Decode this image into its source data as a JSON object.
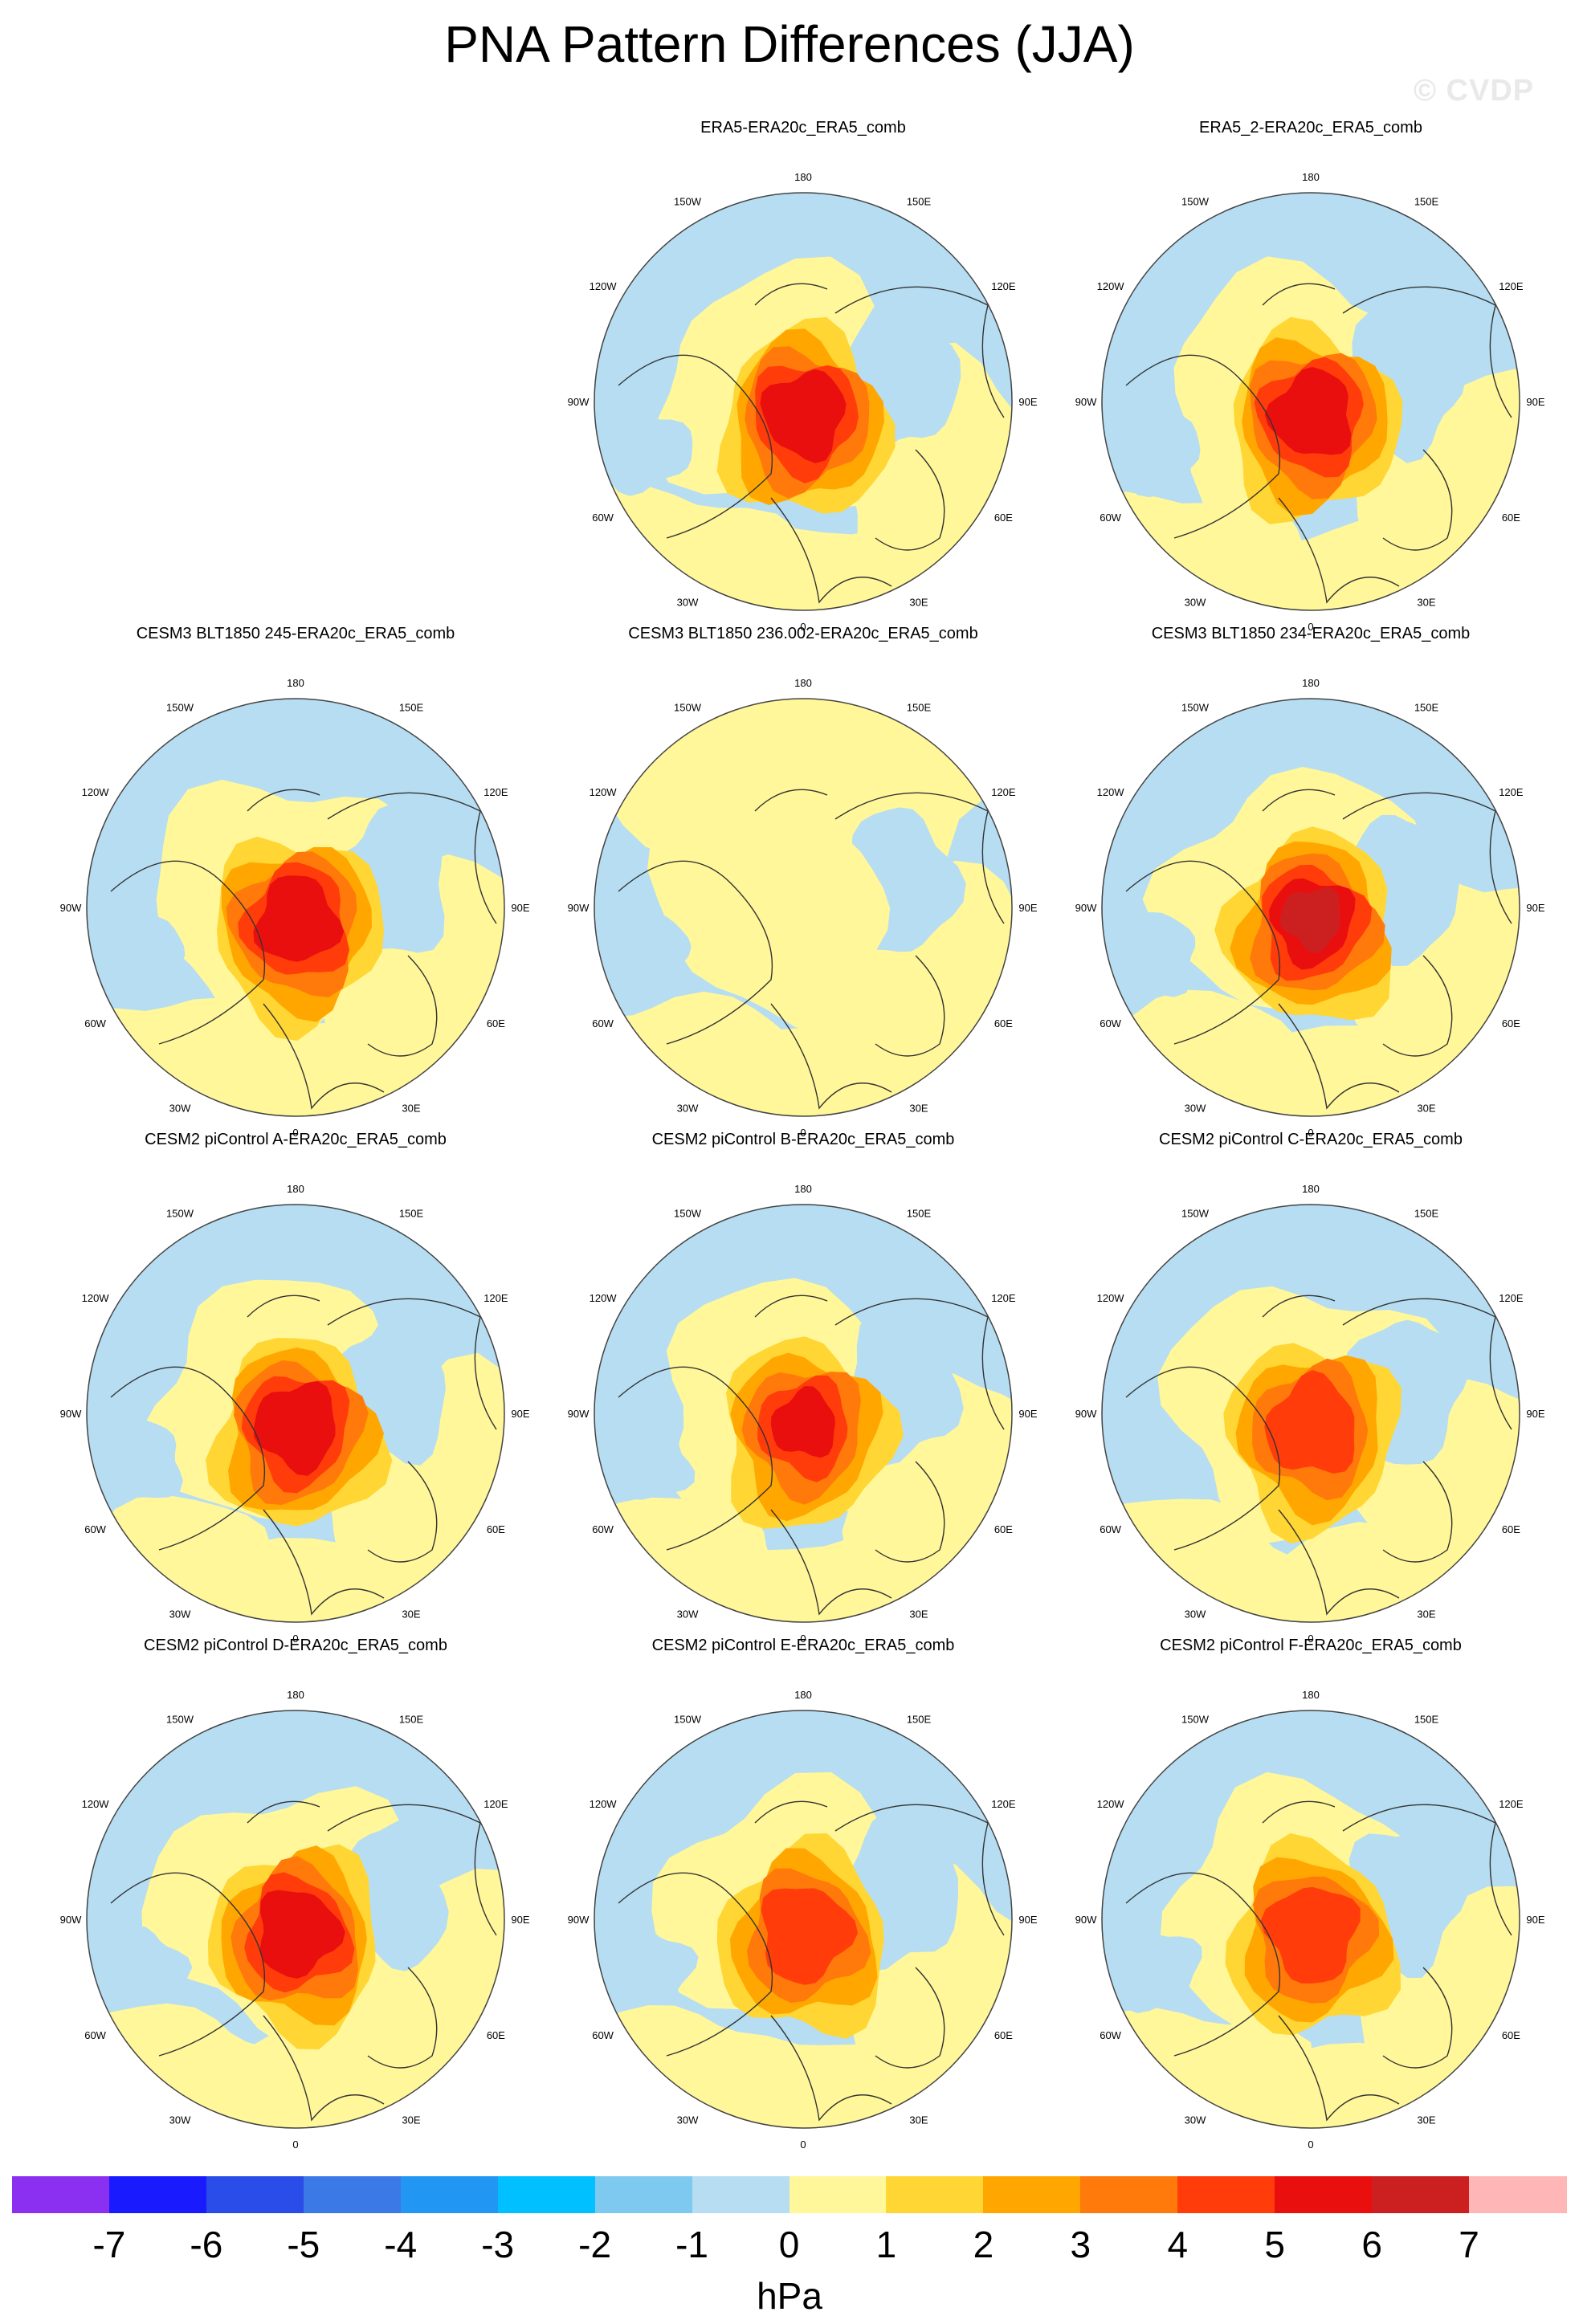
{
  "title": "PNA Pattern Differences (JJA)",
  "watermark": "© CVDP",
  "colors": {
    "levels": [
      "#8b2ff0",
      "#1a1aff",
      "#2a4ce8",
      "#3b7ae6",
      "#2196f3",
      "#00c0ff",
      "#7ec9f0",
      "#b6ddf2",
      "#fff79a",
      "#ffd633",
      "#ffa700",
      "#ff7a0a",
      "#ff3c0a",
      "#ea0f0f",
      "#cc2020",
      "#ffb6b6"
    ],
    "coast": "#333333",
    "border": "#444444"
  },
  "chart_data": {
    "type": "polar-contour-panels",
    "variable": "PNA pattern difference",
    "season": "JJA",
    "units": "hPa",
    "colorbar_ticks": [
      "-7",
      "-6",
      "-5",
      "-4",
      "-3",
      "-2",
      "-1",
      "0",
      "1",
      "2",
      "3",
      "4",
      "5",
      "6",
      "7"
    ],
    "longitude_labels": [
      "180",
      "150E",
      "120E",
      "90E",
      "60E",
      "30E",
      "0",
      "30W",
      "60W",
      "90W",
      "120W",
      "150W"
    ],
    "panels": [
      {
        "id": "era5",
        "title": "ERA5-ERA20c_ERA5_comb",
        "center_max": 5.5,
        "row": 0,
        "col": 1
      },
      {
        "id": "era5_2",
        "title": "ERA5_2-ERA20c_ERA5_comb",
        "center_max": 5.5,
        "row": 0,
        "col": 2
      },
      {
        "id": "cesm3_245",
        "title": "CESM3 BLT1850 245-ERA20c_ERA5_comb",
        "center_max": 5.5,
        "row": 1,
        "col": 0
      },
      {
        "id": "cesm3_236",
        "title": "CESM3 BLT1850 236.002-ERA20c_ERA5_comb",
        "center_max": 0.5,
        "row": 1,
        "col": 1
      },
      {
        "id": "cesm3_234",
        "title": "CESM3 BLT1850 234-ERA20c_ERA5_comb",
        "center_max": 6.0,
        "row": 1,
        "col": 2
      },
      {
        "id": "cesm2_a",
        "title": "CESM2 piControl A-ERA20c_ERA5_comb",
        "center_max": 5.5,
        "row": 2,
        "col": 0
      },
      {
        "id": "cesm2_b",
        "title": "CESM2 piControl B-ERA20c_ERA5_comb",
        "center_max": 5.0,
        "row": 2,
        "col": 1
      },
      {
        "id": "cesm2_c",
        "title": "CESM2 piControl C-ERA20c_ERA5_comb",
        "center_max": 4.5,
        "row": 2,
        "col": 2
      },
      {
        "id": "cesm2_d",
        "title": "CESM2 piControl D-ERA20c_ERA5_comb",
        "center_max": 5.5,
        "row": 3,
        "col": 0
      },
      {
        "id": "cesm2_e",
        "title": "CESM2 piControl E-ERA20c_ERA5_comb",
        "center_max": 4.5,
        "row": 3,
        "col": 1
      },
      {
        "id": "cesm2_f",
        "title": "CESM2 piControl F-ERA20c_ERA5_comb",
        "center_max": 4.5,
        "row": 3,
        "col": 2
      }
    ]
  }
}
